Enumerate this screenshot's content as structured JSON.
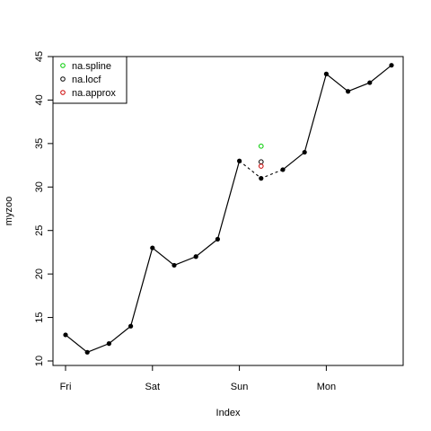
{
  "chart_data": {
    "type": "line",
    "xlabel": "Index",
    "ylabel": "myzoo",
    "x_tick_labels": [
      "Fri",
      "Sat",
      "Sun",
      "Mon"
    ],
    "x_tick_index": [
      0,
      4,
      8,
      12
    ],
    "ylim": [
      10,
      45
    ],
    "y_ticks": [
      10,
      15,
      20,
      25,
      30,
      35,
      40,
      45
    ],
    "index": [
      0,
      1,
      2,
      3,
      4,
      5,
      6,
      7,
      8,
      9,
      10,
      11,
      12,
      13,
      14,
      15
    ],
    "values": [
      13,
      11,
      12,
      14,
      23,
      21,
      22,
      24,
      33,
      null,
      32,
      34,
      43,
      41,
      42,
      44
    ],
    "imputed_line": {
      "from_index": 8,
      "to_index": 10,
      "via_index": 9,
      "via_value": 31
    },
    "legend": {
      "position": "top-left",
      "entries": [
        {
          "label": "na.spline",
          "color": "#00cc00"
        },
        {
          "label": "na.locf",
          "color": "#000000"
        },
        {
          "label": "na.approx",
          "color": "#cc0000"
        }
      ]
    },
    "imputed_points": [
      {
        "method": "na.spline",
        "index": 9,
        "value": 34.7,
        "color": "#00cc00"
      },
      {
        "method": "na.locf",
        "index": 9,
        "value": 32.9,
        "color": "#000000"
      },
      {
        "method": "na.approx",
        "index": 9,
        "value": 32.4,
        "color": "#cc0000"
      }
    ],
    "grid": false
  }
}
